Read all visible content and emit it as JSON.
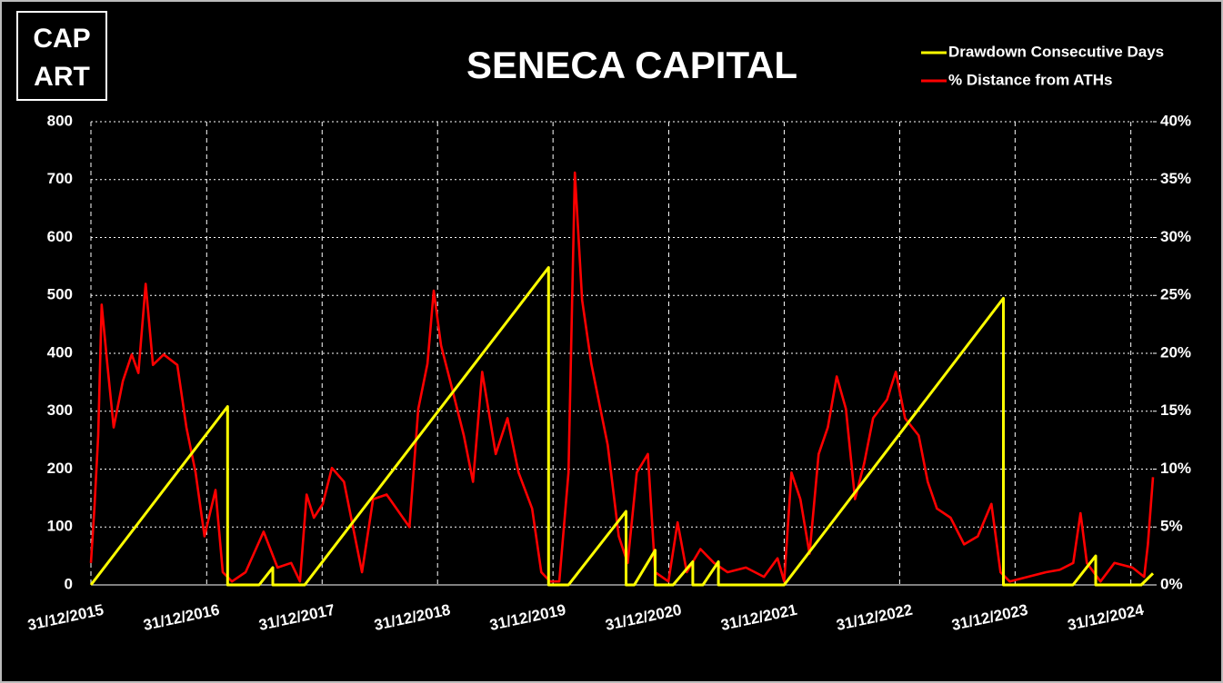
{
  "chart_data": {
    "type": "line",
    "title": "SENECA CAPITAL",
    "annotations": [
      "CAP",
      "ART"
    ],
    "legend": "top-right",
    "grid": true,
    "xlim": [
      "31/12/2015",
      "11/03/2025"
    ],
    "xticks": [
      "31/12/2015",
      "31/12/2016",
      "31/12/2017",
      "31/12/2018",
      "31/12/2019",
      "31/12/2020",
      "31/12/2021",
      "31/12/2022",
      "31/12/2023",
      "31/12/2024"
    ],
    "ylim": [
      0,
      800
    ],
    "yticks": [
      0,
      100,
      200,
      300,
      400,
      500,
      600,
      700,
      800
    ],
    "y2lim": [
      0,
      40
    ],
    "y2ticks": [
      {
        "value": 0,
        "label": "0%"
      },
      {
        "value": 5,
        "label": "5%"
      },
      {
        "value": 10,
        "label": "10%"
      },
      {
        "value": 15,
        "label": "15%"
      },
      {
        "value": 20,
        "label": "20%"
      },
      {
        "value": 25,
        "label": "25%"
      },
      {
        "value": 30,
        "label": "30%"
      },
      {
        "value": 35,
        "label": "35%"
      },
      {
        "value": 40,
        "label": "40%"
      }
    ],
    "series": [
      {
        "name": "Drawdown Consecutive Days",
        "color": "#ffff00",
        "x": [
          "31/12/2015",
          "07/03/2017",
          "07/03/2017",
          "15/06/2017",
          "28/07/2017",
          "28/07/2017",
          "06/11/2017",
          "17/12/2019",
          "17/12/2019",
          "18/02/2020",
          "18/08/2020",
          "18/08/2020",
          "13/09/2020",
          "18/11/2020",
          "18/11/2020",
          "14/01/2021",
          "17/03/2021",
          "17/03/2021",
          "18/04/2021",
          "06/06/2021",
          "06/06/2021",
          "31/12/2021",
          "24/11/2023",
          "24/11/2023",
          "01/07/2024",
          "11/09/2024",
          "11/09/2024",
          "02/02/2025",
          "11/03/2025"
        ],
        "values": [
          0,
          308,
          0,
          0,
          30,
          0,
          0,
          548,
          0,
          0,
          127,
          0,
          0,
          60,
          0,
          0,
          40,
          0,
          0,
          40,
          0,
          0,
          495,
          0,
          0,
          50,
          0,
          0,
          20
        ]
      },
      {
        "name": "% Distance from ATHs",
        "color": "#ff0000",
        "axis": "y2",
        "x": [
          "31/12/2015",
          "11/01/2016",
          "23/01/2016",
          "03/02/2016",
          "21/02/2016",
          "12/03/2016",
          "10/04/2016",
          "08/05/2016",
          "29/05/2016",
          "21/06/2016",
          "14/07/2016",
          "17/08/2016",
          "29/09/2016",
          "28/10/2016",
          "26/11/2016",
          "24/12/2016",
          "28/01/2017",
          "20/02/2017",
          "21/03/2017",
          "03/05/2017",
          "29/06/2017",
          "12/08/2017",
          "24/09/2017",
          "22/10/2017",
          "12/11/2017",
          "05/12/2017",
          "02/01/2018",
          "31/01/2018",
          "10/03/2018",
          "06/05/2018",
          "10/06/2018",
          "23/07/2018",
          "03/10/2018",
          "31/10/2018",
          "29/11/2018",
          "19/12/2018",
          "11/01/2019",
          "09/02/2019",
          "24/03/2019",
          "22/04/2019",
          "21/05/2019",
          "03/07/2019",
          "09/08/2019",
          "13/09/2019",
          "26/10/2019",
          "24/11/2019",
          "22/12/2019",
          "20/01/2020",
          "18/02/2020",
          "09/03/2020",
          "01/04/2020",
          "30/04/2020",
          "29/05/2020",
          "21/06/2020",
          "26/07/2020",
          "23/08/2020",
          "21/09/2020",
          "26/10/2020",
          "18/11/2020",
          "30/12/2020",
          "28/01/2021",
          "26/02/2021",
          "10/04/2021",
          "23/05/2021",
          "05/07/2021",
          "01/09/2021",
          "28/10/2021",
          "10/12/2021",
          "31/12/2021",
          "23/01/2022",
          "20/02/2022",
          "21/03/2022",
          "19/04/2022",
          "18/05/2022",
          "15/06/2022",
          "14/07/2022",
          "12/08/2022",
          "10/09/2022",
          "08/10/2022",
          "21/11/2022",
          "19/12/2022",
          "17/01/2023",
          "01/03/2023",
          "30/03/2023",
          "28/04/2023",
          "10/06/2023",
          "23/07/2023",
          "04/09/2023",
          "17/10/2023",
          "15/11/2023",
          "14/12/2023",
          "09/02/2024",
          "07/04/2024",
          "20/05/2024",
          "02/07/2024",
          "25/07/2024",
          "14/08/2024",
          "26/09/2024",
          "09/11/2024",
          "05/01/2025",
          "11/02/2025",
          "23/02/2025",
          "11/03/2025"
        ],
        "values": [
          1.9,
          6.6,
          12.9,
          24.2,
          19,
          13.6,
          17.6,
          19.9,
          18.3,
          26,
          19,
          19.9,
          19,
          13.6,
          9.7,
          4.2,
          8.2,
          1.1,
          0.3,
          1.1,
          4.6,
          1.5,
          1.9,
          0.3,
          7.8,
          5.8,
          7,
          10.1,
          8.9,
          1.1,
          7.4,
          7.8,
          5,
          15.2,
          19.1,
          25.4,
          20.7,
          17.6,
          12.9,
          8.9,
          18.4,
          11.3,
          14.4,
          9.7,
          6.6,
          1.1,
          0.3,
          0.3,
          9.7,
          35.6,
          24.6,
          19.1,
          15.2,
          12.1,
          4.2,
          1.9,
          9.7,
          11.3,
          1.1,
          0.3,
          5.4,
          1.1,
          3.1,
          1.9,
          1.1,
          1.5,
          0.7,
          2.3,
          0.3,
          9.7,
          7.4,
          2.7,
          11.3,
          13.6,
          18,
          15.2,
          7.4,
          10.5,
          14.4,
          16,
          18.4,
          14.4,
          12.9,
          8.9,
          6.6,
          5.8,
          3.5,
          4.2,
          7,
          1.1,
          0.3,
          0.7,
          1.1,
          1.3,
          1.9,
          6.2,
          1.9,
          0.3,
          1.9,
          1.5,
          0.7,
          3.5,
          9.3
        ]
      }
    ]
  }
}
